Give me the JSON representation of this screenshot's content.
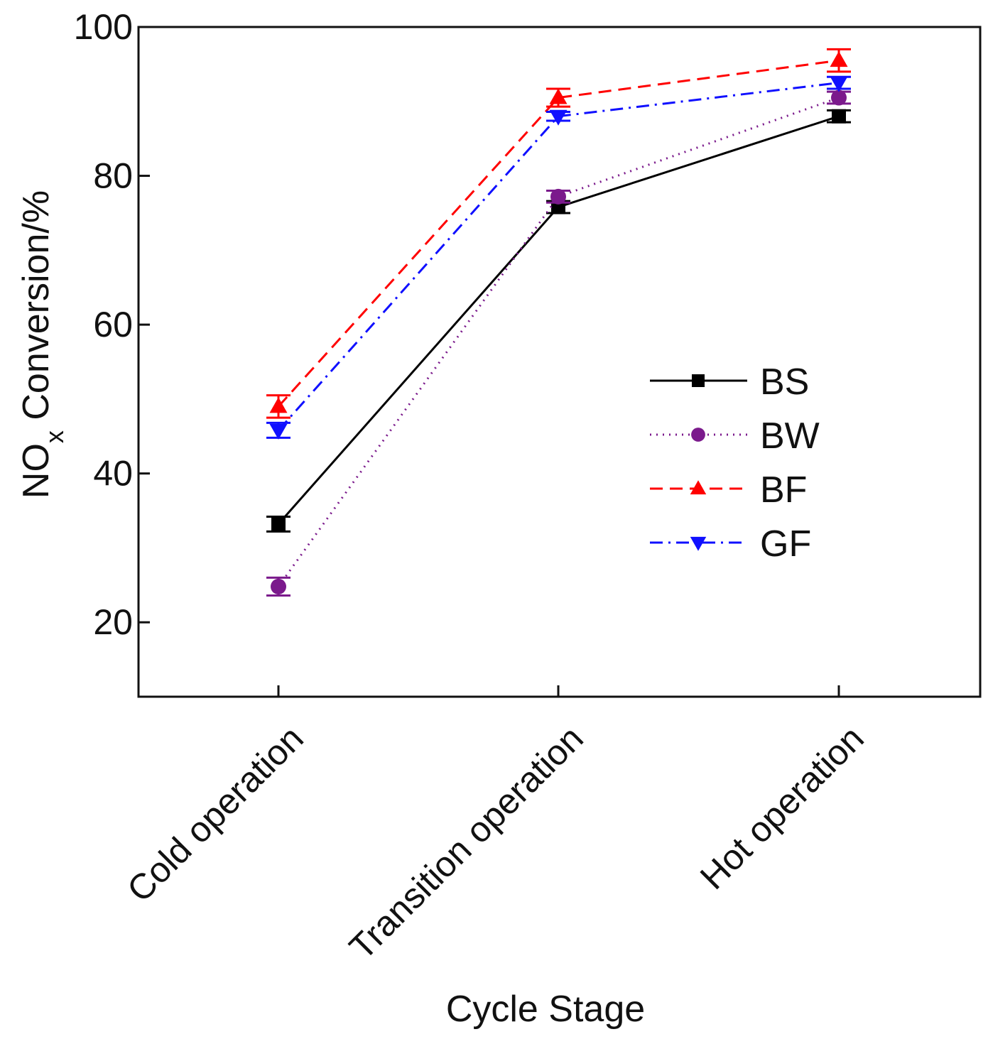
{
  "chart_data": {
    "type": "line",
    "title": "",
    "categories": [
      "Cold operation",
      "Transition operation",
      "Hot operation"
    ],
    "xlabel": "Cycle Stage",
    "ylabel_main": "NO",
    "ylabel_sub": "x",
    "ylabel_rest": " Conversion/%",
    "ylim": [
      10,
      100
    ],
    "yticks": [
      20,
      40,
      60,
      80,
      100
    ],
    "legend_position": "center-right",
    "series": [
      {
        "name": "BS",
        "values": [
          33.2,
          75.8,
          88.0
        ],
        "errors": [
          1.0,
          0.8,
          0.8
        ],
        "color": "#000000",
        "marker": "square",
        "dash": ""
      },
      {
        "name": "BW",
        "values": [
          24.8,
          77.2,
          90.5
        ],
        "errors": [
          1.2,
          0.8,
          0.8
        ],
        "color": "#7b1a8c",
        "marker": "circle",
        "dash": "2,7"
      },
      {
        "name": "BF",
        "values": [
          49.0,
          90.5,
          95.5
        ],
        "errors": [
          1.5,
          1.2,
          1.5
        ],
        "color": "#ff0000",
        "marker": "triangle-up",
        "dash": "18,10"
      },
      {
        "name": "GF",
        "values": [
          45.8,
          88.0,
          92.5
        ],
        "errors": [
          1.0,
          0.6,
          0.8
        ],
        "color": "#1010ff",
        "marker": "triangle-down",
        "dash": "18,8,3,8"
      }
    ]
  }
}
